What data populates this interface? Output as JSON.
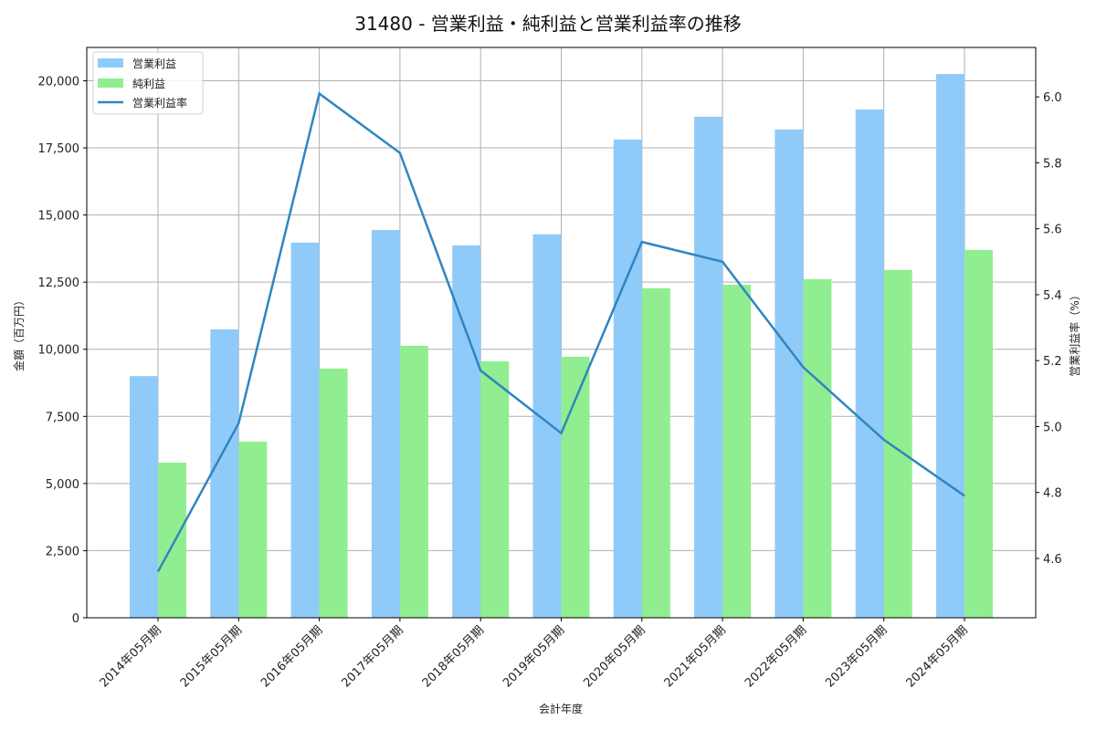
{
  "title": "31480 - 営業利益・純利益と営業利益率の推移",
  "chart_data": {
    "type": "bar",
    "title": "31480 - 営業利益・純利益と営業利益率の推移",
    "xlabel": "会計年度",
    "ylabel": "金額（百万円）",
    "y2label": "営業利益率（%）",
    "categories": [
      "2014年05月期",
      "2015年05月期",
      "2016年05月期",
      "2017年05月期",
      "2018年05月期",
      "2019年05月期",
      "2020年05月期",
      "2021年05月期",
      "2022年05月期",
      "2023年05月期",
      "2024年05月期"
    ],
    "series": [
      {
        "name": "営業利益",
        "type": "bar",
        "axis": "left",
        "color": "#90caf9",
        "values": [
          9000,
          10740,
          13970,
          14440,
          13870,
          14280,
          17810,
          18660,
          18180,
          18930,
          20250
        ]
      },
      {
        "name": "純利益",
        "type": "bar",
        "axis": "left",
        "color": "#90ee90",
        "values": [
          5780,
          6560,
          9280,
          10130,
          9550,
          9720,
          12270,
          12400,
          12610,
          12950,
          13700
        ]
      },
      {
        "name": "営業利益率",
        "type": "line",
        "axis": "right",
        "color": "#2e86c1",
        "values": [
          4.56,
          5.01,
          6.01,
          5.83,
          5.17,
          4.98,
          5.56,
          5.5,
          5.18,
          4.96,
          4.79
        ]
      }
    ],
    "ylim": [
      0,
      21240
    ],
    "y2lim": [
      4.42,
      6.15
    ],
    "yticks": [
      0,
      2500,
      5000,
      7500,
      10000,
      12500,
      15000,
      17500,
      20000
    ],
    "ytick_labels": [
      "0",
      "2,500",
      "5,000",
      "7,500",
      "10,000",
      "12,500",
      "15,000",
      "17,500",
      "20,000"
    ],
    "y2ticks": [
      4.6,
      4.8,
      5.0,
      5.2,
      5.4,
      5.6,
      5.8,
      6.0
    ],
    "y2tick_labels": [
      "4.6",
      "4.8",
      "5.0",
      "5.2",
      "5.4",
      "5.6",
      "5.8",
      "6.0"
    ],
    "grid": true,
    "legend_position": "upper left"
  }
}
